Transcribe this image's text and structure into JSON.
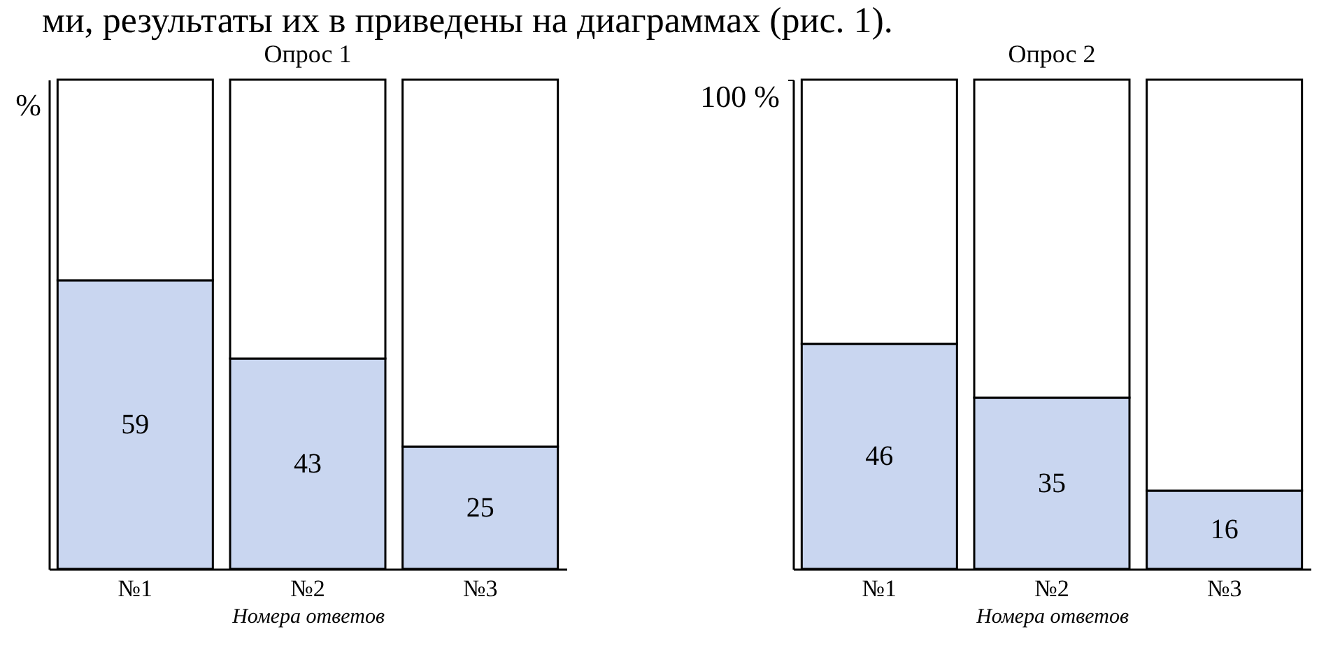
{
  "chart_data": [
    {
      "type": "bar",
      "title": "Опрос 1",
      "ylabel": "%",
      "xlabel": "Номера ответов",
      "categories": [
        "№1",
        "№2",
        "№3"
      ],
      "stacked": true,
      "ylim": [
        0,
        100
      ],
      "annotations": [
        "ми, результаты их в приведены на диаграммах (рис. 1)."
      ],
      "series": [
        {
          "color": "#c9d6f0",
          "values": [
            59,
            43,
            25
          ],
          "value_labels": [
            "59",
            "43",
            "25"
          ]
        },
        {
          "color": "#ffffff",
          "values": [
            41,
            57,
            75
          ]
        }
      ]
    },
    {
      "type": "bar",
      "title": "Опрос 2",
      "xlabel": "Номера ответов",
      "categories": [
        "№1",
        "№2",
        "№3"
      ],
      "stacked": true,
      "ylim": [
        0,
        100
      ],
      "yticks": [
        {
          "value": 100,
          "label": "100 %"
        }
      ],
      "series": [
        {
          "color": "#c9d6f0",
          "values": [
            46,
            35,
            16
          ],
          "value_labels": [
            "46",
            "35",
            "16"
          ]
        },
        {
          "color": "#ffffff",
          "values": [
            54,
            65,
            84
          ]
        }
      ]
    }
  ]
}
